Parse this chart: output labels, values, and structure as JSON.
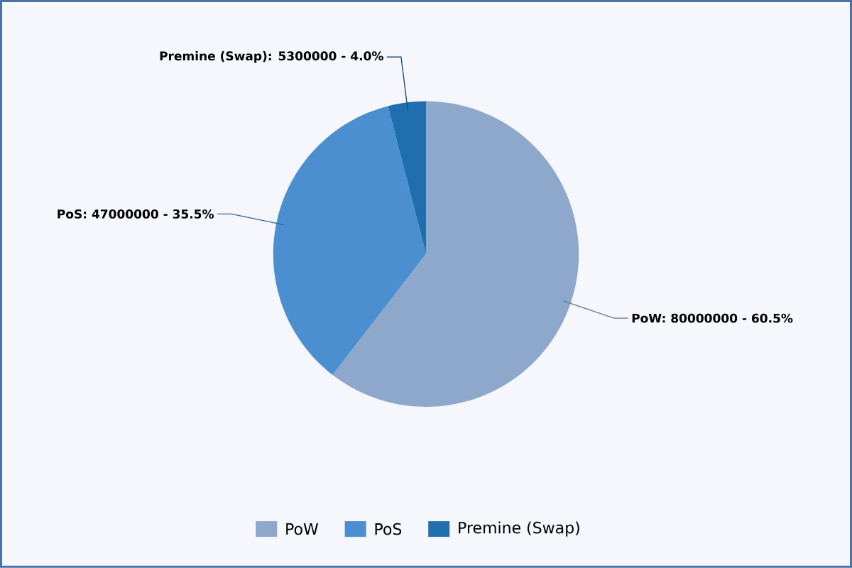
{
  "chart_data": {
    "type": "pie",
    "categories": [
      "PoW",
      "PoS",
      "Premine (Swap)"
    ],
    "values": [
      80000000,
      47000000,
      5300000
    ],
    "colors": [
      "#8ea8cb",
      "#4b8fd0",
      "#1f6fae"
    ],
    "value_labels": [
      "PoW: 80000000 - 60.5%",
      "PoS: 47000000 - 35.5%",
      "Premine (Swap): 5300000 - 4.0%"
    ],
    "legend": "bottom"
  }
}
